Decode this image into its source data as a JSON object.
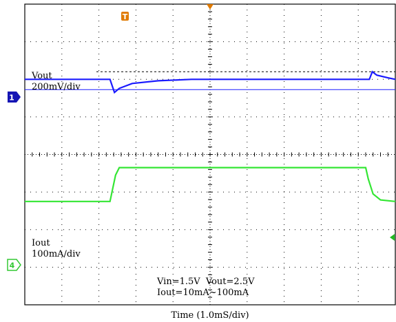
{
  "chart_data": {
    "type": "line",
    "x_axis": {
      "label": "Time (1.0mS/div)",
      "divisions": 10,
      "units_per_div_ms": 1.0,
      "range_ms": [
        0,
        10
      ]
    },
    "y_axis": {
      "divisions": 8
    },
    "grid": true,
    "channels": [
      {
        "id": "1",
        "name": "Vout",
        "scale": "200mV/div",
        "color": "#1a1aff",
        "ground_div": 2.0,
        "x_ms": [
          0,
          2.3,
          2.42,
          2.55,
          2.9,
          3.6,
          4.5,
          9.3,
          9.38,
          9.5,
          9.8,
          10
        ],
        "values_mV": [
          0,
          0,
          -70,
          -48,
          -22,
          -8,
          0,
          0,
          40,
          22,
          8,
          0
        ]
      },
      {
        "id": "4",
        "name": "Iout",
        "scale": "100mA/div",
        "color": "#33e633",
        "ground_div": 5.35,
        "x_ms": [
          0,
          2.3,
          2.45,
          2.55,
          3.0,
          9.2,
          9.27,
          9.4,
          9.6,
          10
        ],
        "values_mA": [
          10,
          10,
          80,
          100,
          100,
          100,
          70,
          30,
          14,
          10
        ]
      }
    ],
    "annotations": [
      {
        "text": "Vout"
      },
      {
        "text": "200mV/div"
      },
      {
        "text": "Iout"
      },
      {
        "text": "100mA/div"
      },
      {
        "text": "Vin=1.5V  Vout=2.5V"
      },
      {
        "text": "Iout=10mA~100mA"
      }
    ],
    "markers": {
      "trigger": "T",
      "channel1": "1",
      "channel4": "4"
    },
    "colors": {
      "trigger_marker": "#e07a00",
      "ch1_marker": "#1414b4",
      "ch4_marker": "#33c833",
      "trigger_level_marker": "#22bb22"
    }
  }
}
